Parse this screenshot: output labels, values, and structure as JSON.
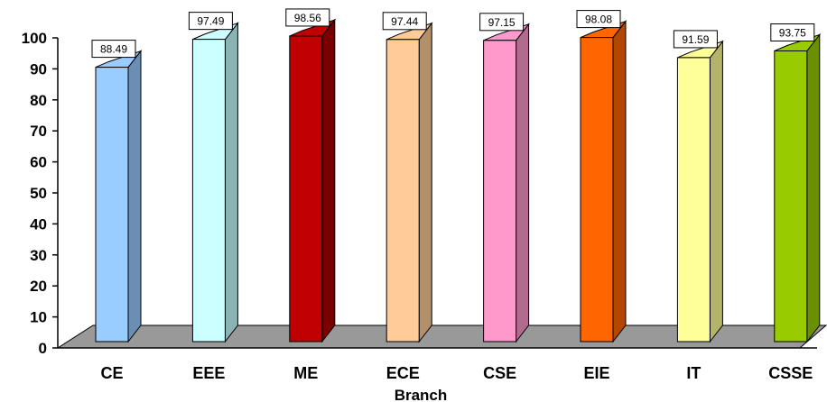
{
  "chart_data": {
    "type": "bar",
    "title": "",
    "xlabel": "Branch",
    "ylabel": "",
    "ylim": [
      0,
      100
    ],
    "yticks": [
      0,
      10,
      20,
      30,
      40,
      50,
      60,
      70,
      80,
      90,
      100
    ],
    "categories": [
      "CE",
      "EEE",
      "ME",
      "ECE",
      "CSE",
      "EIE",
      "IT",
      "CSSE"
    ],
    "values": [
      88.49,
      97.49,
      98.56,
      97.44,
      97.15,
      98.08,
      91.59,
      93.75
    ],
    "data_labels": [
      "88.49",
      "97.49",
      "98.56",
      "97.44",
      "97.15",
      "98.08",
      "91.59",
      "93.75"
    ],
    "colors": [
      "#99CCFF",
      "#CCFFFF",
      "#C00000",
      "#FFCC99",
      "#FF99CC",
      "#FF6600",
      "#FFFF99",
      "#99CC00"
    ],
    "side_colors": [
      "#6A8FB3",
      "#8CB3B3",
      "#7A0000",
      "#B38F6A",
      "#B36A8F",
      "#B34700",
      "#B3B36A",
      "#6A8F00"
    ],
    "floor_color": "#999999",
    "grid": false,
    "legend": "none",
    "style": "3d-column"
  }
}
